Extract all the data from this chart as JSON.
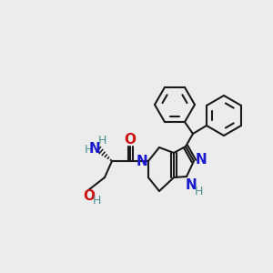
{
  "bg_color": "#ececec",
  "bond_color": "#1a1a1a",
  "N_color": "#1a1acc",
  "O_color": "#cc1111",
  "NH_color": "#4a9090",
  "lw": 1.5,
  "figsize": [
    3.0,
    3.0
  ],
  "dpi": 100,
  "xlim": [
    0,
    300
  ],
  "ylim": [
    0,
    300
  ]
}
